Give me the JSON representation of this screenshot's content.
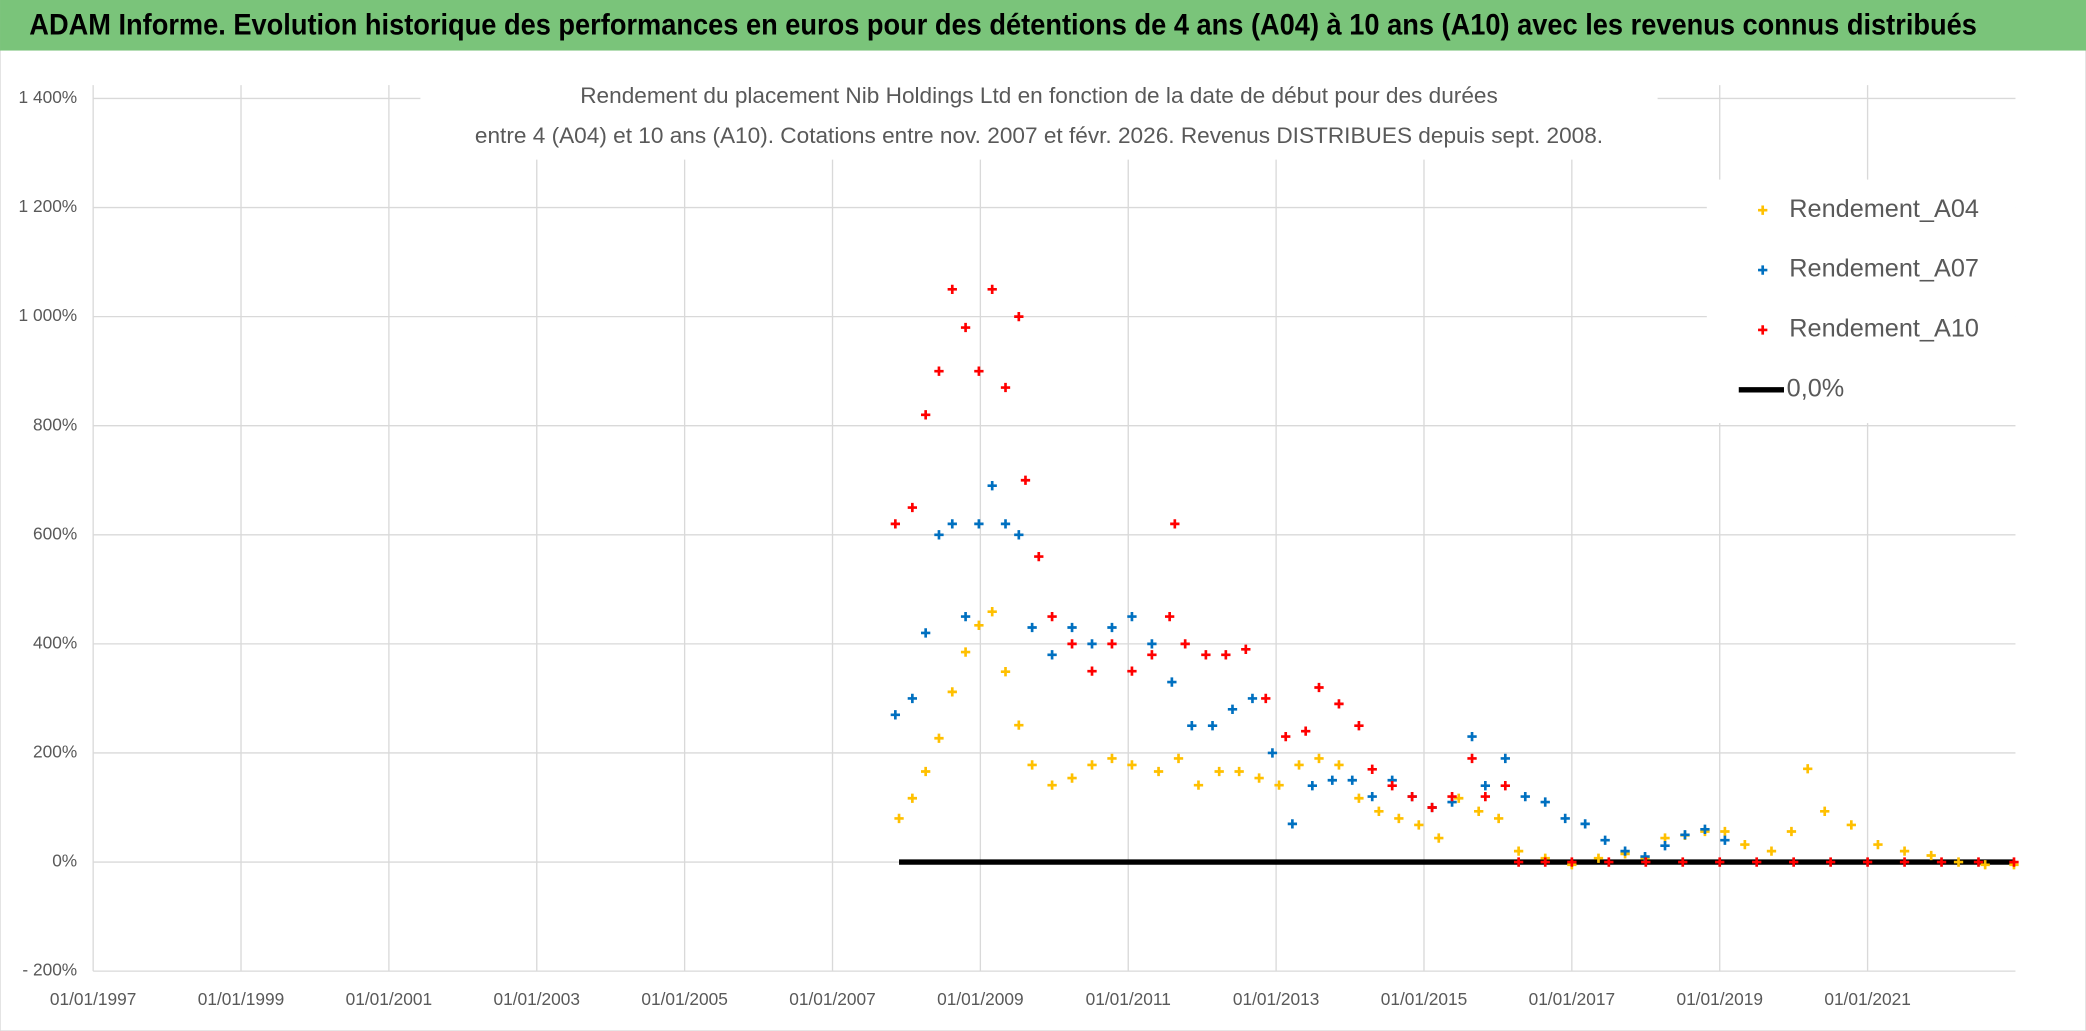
{
  "header": {
    "title": "ADAM Informe. Evolution historique des performances en euros pour des détentions de 4 ans (A04) à 10 ans (A10) avec les revenus connus distribués"
  },
  "chart_data": {
    "type": "scatter",
    "title": "Rendement du placement Nib Holdings Ltd en fonction de la date de début pour des durées",
    "subtitle": "entre 4 (A04) et 10 ans (A10). Cotations entre nov. 2007 et févr. 2026. Revenus DISTRIBUES depuis sept. 2008.",
    "xlim": [
      1997,
      2023
    ],
    "xticks": [
      {
        "value": 1997,
        "label": "01/01/1997"
      },
      {
        "value": 1999,
        "label": "01/01/1999"
      },
      {
        "value": 2001,
        "label": "01/01/2001"
      },
      {
        "value": 2003,
        "label": "01/01/2003"
      },
      {
        "value": 2005,
        "label": "01/01/2005"
      },
      {
        "value": 2007,
        "label": "01/01/2007"
      },
      {
        "value": 2009,
        "label": "01/01/2009"
      },
      {
        "value": 2011,
        "label": "01/01/2011"
      },
      {
        "value": 2013,
        "label": "01/01/2013"
      },
      {
        "value": 2015,
        "label": "01/01/2015"
      },
      {
        "value": 2017,
        "label": "01/01/2017"
      },
      {
        "value": 2019,
        "label": "01/01/2019"
      },
      {
        "value": 2021,
        "label": "01/01/2021"
      }
    ],
    "ylim": [
      -200,
      1400
    ],
    "yticks": [
      {
        "value": -200,
        "label": "- 200%"
      },
      {
        "value": 0,
        "label": "0%"
      },
      {
        "value": 200,
        "label": "200%"
      },
      {
        "value": 400,
        "label": "400%"
      },
      {
        "value": 600,
        "label": "600%"
      },
      {
        "value": 800,
        "label": "800%"
      },
      {
        "value": 1000,
        "label": "1 000%"
      },
      {
        "value": 1200,
        "label": "1 200%"
      },
      {
        "value": 1400,
        "label": "1 400%"
      }
    ],
    "grid": true,
    "legend": "upper right",
    "series": [
      {
        "name": "Rendement_A04",
        "color": "#ffc000",
        "mode": "markers",
        "x": [
          2007.9,
          2008.08,
          2008.26,
          2008.44,
          2008.62,
          2008.8,
          2008.98,
          2009.16,
          2009.34,
          2009.52,
          2009.7,
          2009.97,
          2010.24,
          2010.51,
          2010.78,
          2011.05,
          2011.41,
          2011.68,
          2011.95,
          2012.23,
          2012.5,
          2012.77,
          2013.04,
          2013.31,
          2013.58,
          2013.85,
          2014.12,
          2014.39,
          2014.66,
          2014.93,
          2015.2,
          2015.47,
          2015.74,
          2016.01,
          2016.28,
          2016.64,
          2017.0,
          2017.36,
          2017.72,
          2017.99,
          2018.26,
          2018.53,
          2018.8,
          2019.07,
          2019.34,
          2019.7,
          2019.97,
          2020.19,
          2020.42,
          2020.78,
          2021.14,
          2021.5,
          2021.86,
          2022.23,
          2022.59,
          2022.98
        ],
        "values": [
          80,
          117,
          166,
          227,
          312,
          385,
          434,
          459,
          349,
          251,
          178,
          141,
          154,
          178,
          190,
          178,
          166,
          190,
          141,
          166,
          166,
          154,
          141,
          178,
          190,
          178,
          117,
          93,
          80,
          68,
          44,
          117,
          93,
          80,
          20,
          7,
          -5,
          7,
          15,
          7,
          44,
          49,
          56,
          56,
          32,
          20,
          56,
          171,
          93,
          68,
          32,
          20,
          12,
          0,
          -5,
          -5
        ]
      },
      {
        "name": "Rendement_A07",
        "color": "#0070c0",
        "mode": "markers",
        "x": [
          2007.85,
          2008.08,
          2008.26,
          2008.44,
          2008.62,
          2008.8,
          2008.98,
          2009.16,
          2009.34,
          2009.52,
          2009.7,
          2009.97,
          2010.24,
          2010.51,
          2010.78,
          2011.05,
          2011.32,
          2011.59,
          2011.86,
          2012.14,
          2012.41,
          2012.68,
          2012.95,
          2013.22,
          2013.49,
          2013.76,
          2014.03,
          2014.3,
          2014.57,
          2014.84,
          2015.11,
          2015.38,
          2015.65,
          2015.83,
          2016.1,
          2016.37,
          2016.64,
          2016.91,
          2017.18,
          2017.45,
          2017.72,
          2017.99,
          2018.26,
          2018.53,
          2018.8,
          2019.07
        ],
        "values": [
          270,
          300,
          420,
          600,
          620,
          450,
          620,
          690,
          620,
          600,
          430,
          380,
          430,
          400,
          430,
          450,
          400,
          330,
          250,
          250,
          280,
          300,
          200,
          70,
          140,
          150,
          150,
          120,
          150,
          120,
          100,
          110,
          230,
          140,
          190,
          120,
          110,
          80,
          70,
          40,
          20,
          10,
          30,
          50,
          60,
          40
        ]
      },
      {
        "name": "Rendement_A10",
        "color": "#ff0000",
        "mode": "markers",
        "x": [
          2007.85,
          2008.08,
          2008.26,
          2008.44,
          2008.62,
          2008.8,
          2008.98,
          2009.16,
          2009.34,
          2009.52,
          2009.61,
          2009.79,
          2009.97,
          2010.24,
          2010.51,
          2010.78,
          2011.05,
          2011.32,
          2011.56,
          2011.63,
          2011.77,
          2012.05,
          2012.32,
          2012.59,
          2012.86,
          2013.13,
          2013.4,
          2013.58,
          2013.85,
          2014.12,
          2014.3,
          2014.57,
          2014.84,
          2015.11,
          2015.38,
          2015.65,
          2015.83,
          2016.1,
          2016.28,
          2016.64,
          2017.0,
          2017.5,
          2018.0,
          2018.5,
          2019.0,
          2019.5,
          2020.0,
          2020.5,
          2021.0,
          2021.5,
          2022.0,
          2022.5,
          2022.98
        ],
        "values": [
          620,
          650,
          820,
          900,
          1050,
          980,
          900,
          1050,
          870,
          1000,
          700,
          560,
          450,
          400,
          350,
          400,
          350,
          380,
          450,
          620,
          400,
          380,
          380,
          390,
          300,
          230,
          240,
          320,
          290,
          250,
          170,
          140,
          120,
          100,
          120,
          190,
          120,
          140,
          0,
          0,
          0,
          0,
          0,
          0,
          0,
          0,
          0,
          0,
          0,
          0,
          0,
          0,
          0
        ]
      },
      {
        "name": "0,0%",
        "color": "#000000",
        "mode": "line",
        "x": [
          2007.9,
          2022.98
        ],
        "values": [
          0,
          0
        ]
      }
    ]
  }
}
